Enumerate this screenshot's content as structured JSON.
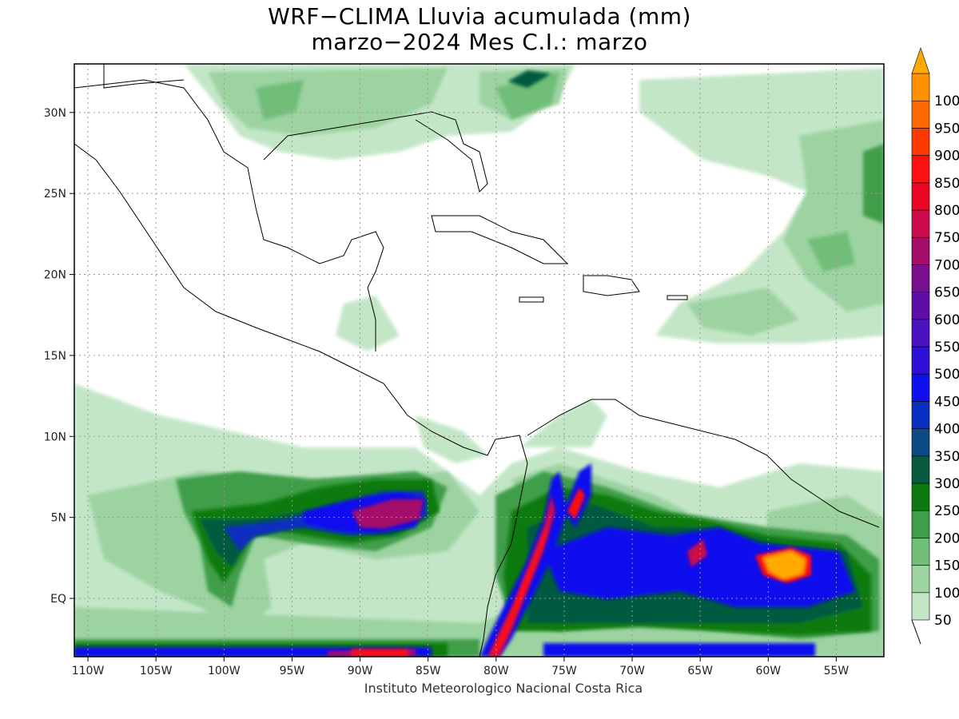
{
  "title": {
    "line1": "WRF−CLIMA Lluvia acumulada (mm)",
    "line2": "marzo−2024 Mes C.I.: marzo"
  },
  "credit": "Instituto Meteorologico Nacional Costa Rica",
  "map": {
    "lon_range": [
      -111,
      -51.5
    ],
    "lat_range": [
      -3.6,
      33
    ],
    "lat_ticks": [
      {
        "value": 30,
        "label": "30N"
      },
      {
        "value": 25,
        "label": "25N"
      },
      {
        "value": 20,
        "label": "20N"
      },
      {
        "value": 15,
        "label": "15N"
      },
      {
        "value": 10,
        "label": "10N"
      },
      {
        "value": 5,
        "label": "5N"
      },
      {
        "value": 0,
        "label": "EQ"
      }
    ],
    "lon_ticks": [
      {
        "value": -110,
        "label": "110W"
      },
      {
        "value": -105,
        "label": "105W"
      },
      {
        "value": -100,
        "label": "100W"
      },
      {
        "value": -95,
        "label": "95W"
      },
      {
        "value": -90,
        "label": "90W"
      },
      {
        "value": -85,
        "label": "85W"
      },
      {
        "value": -80,
        "label": "80W"
      },
      {
        "value": -75,
        "label": "75W"
      },
      {
        "value": -70,
        "label": "70W"
      },
      {
        "value": -65,
        "label": "65W"
      },
      {
        "value": -60,
        "label": "60W"
      },
      {
        "value": -55,
        "label": "55W"
      }
    ],
    "grid": true
  },
  "colorbar": {
    "levels": [
      {
        "label": "50",
        "color": "#c3e6c7"
      },
      {
        "label": "100",
        "color": "#9cd3a1"
      },
      {
        "label": "150",
        "color": "#70be78"
      },
      {
        "label": "200",
        "color": "#3f9e49"
      },
      {
        "label": "250",
        "color": "#0c7a10"
      },
      {
        "label": "300",
        "color": "#055a40"
      },
      {
        "label": "350",
        "color": "#0b4a84"
      },
      {
        "label": "400",
        "color": "#0a2ec0"
      },
      {
        "label": "450",
        "color": "#1010ee"
      },
      {
        "label": "500",
        "color": "#2e10d8"
      },
      {
        "label": "550",
        "color": "#4a12c0"
      },
      {
        "label": "600",
        "color": "#5e0ea6"
      },
      {
        "label": "650",
        "color": "#78108e"
      },
      {
        "label": "700",
        "color": "#a40e6a"
      },
      {
        "label": "750",
        "color": "#cc0a4a"
      },
      {
        "label": "800",
        "color": "#ec0626"
      },
      {
        "label": "850",
        "color": "#ff1010"
      },
      {
        "label": "900",
        "color": "#ff3a00"
      },
      {
        "label": "950",
        "color": "#ff6a00"
      },
      {
        "label": "100",
        "color": "#ff9200"
      }
    ],
    "overflow_color": "#ffaa00"
  }
}
